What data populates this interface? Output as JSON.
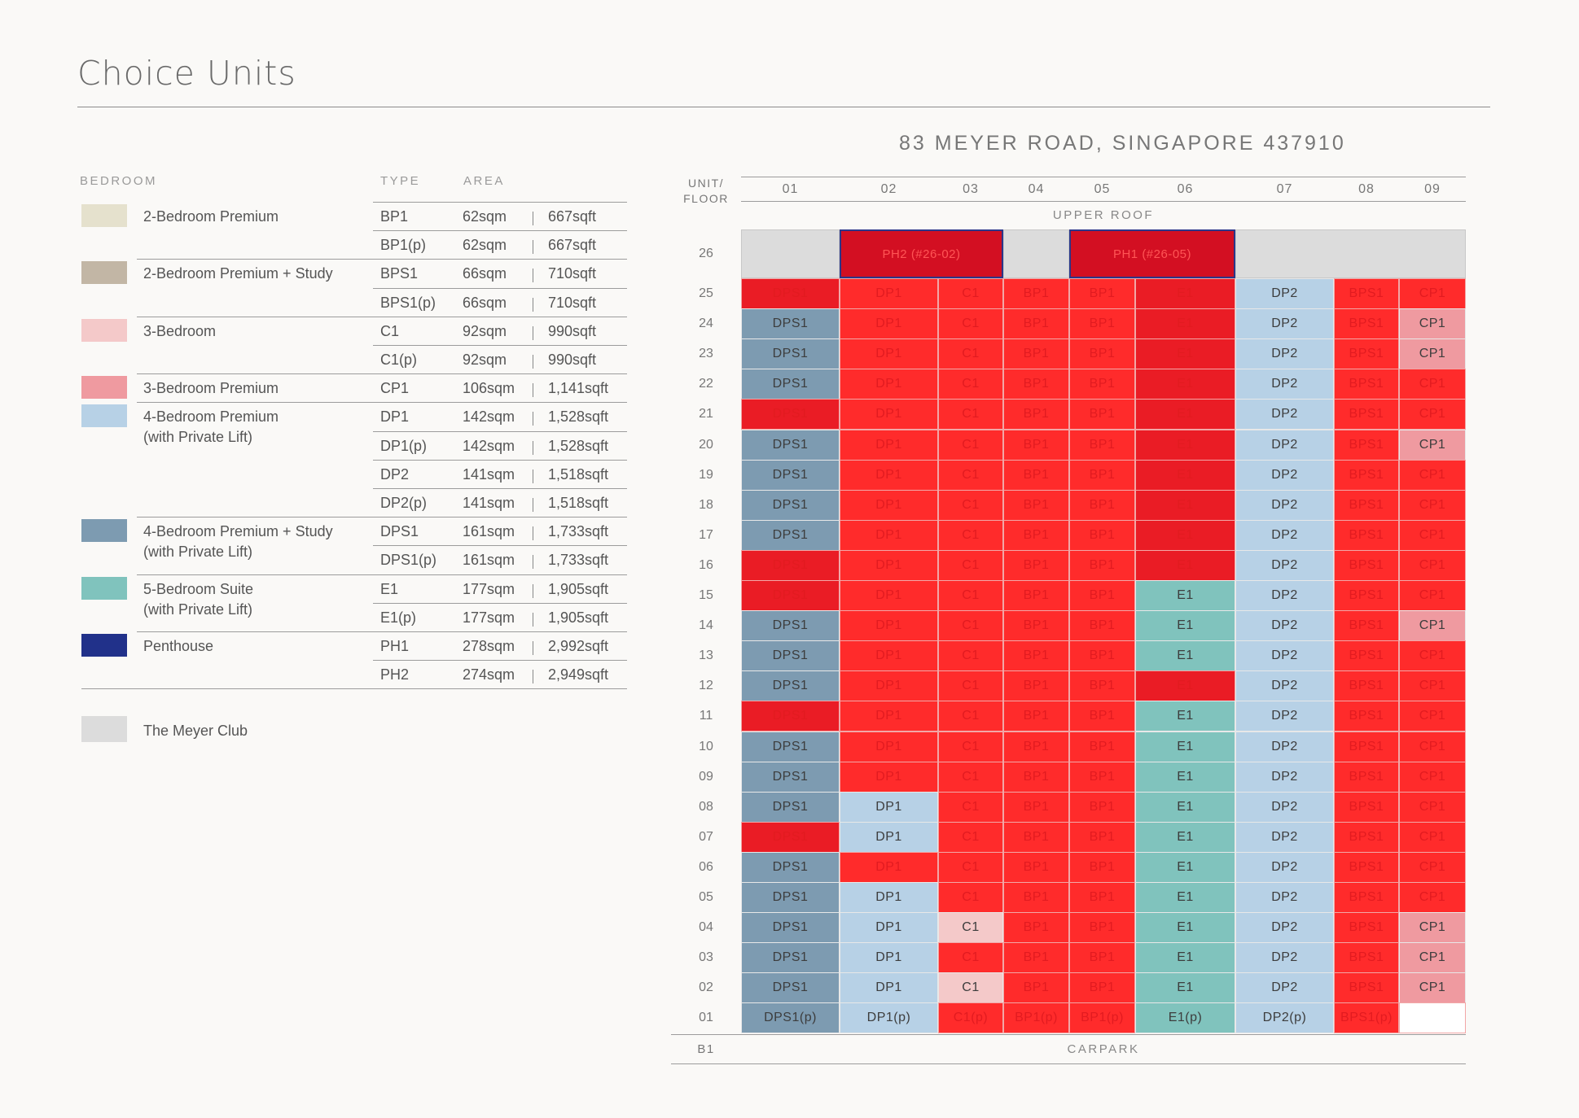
{
  "page": {
    "title": "Choice Units",
    "address": "83 MEYER ROAD, SINGAPORE 437910"
  },
  "legend": {
    "headers": {
      "bedroom": "BEDROOM",
      "type": "TYPE",
      "area": "AREA"
    },
    "groups": [
      {
        "label": "2-Bedroom Premium",
        "color": "#e5e1cd",
        "rows": [
          {
            "type": "BP1",
            "sqm": "62sqm",
            "sqft": "667sqft"
          },
          {
            "type": "BP1(p)",
            "sqm": "62sqm",
            "sqft": "667sqft"
          }
        ]
      },
      {
        "label": "2-Bedroom Premium + Study",
        "color": "#c2b6a5",
        "rows": [
          {
            "type": "BPS1",
            "sqm": "66sqm",
            "sqft": "710sqft"
          },
          {
            "type": "BPS1(p)",
            "sqm": "66sqm",
            "sqft": "710sqft"
          }
        ]
      },
      {
        "label": "3-Bedroom",
        "color": "#f4c9c9",
        "rows": [
          {
            "type": "C1",
            "sqm": "92sqm",
            "sqft": "990sqft"
          },
          {
            "type": "C1(p)",
            "sqm": "92sqm",
            "sqft": "990sqft"
          }
        ]
      },
      {
        "label": "3-Bedroom Premium",
        "color": "#ef9aa0",
        "rows": [
          {
            "type": "CP1",
            "sqm": "106sqm",
            "sqft": "1,141sqft"
          }
        ]
      },
      {
        "label": "4-Bedroom Premium\n(with Private Lift)",
        "color": "#b7d1e6",
        "rows": [
          {
            "type": "DP1",
            "sqm": "142sqm",
            "sqft": "1,528sqft"
          },
          {
            "type": "DP1(p)",
            "sqm": "142sqm",
            "sqft": "1,528sqft"
          },
          {
            "type": "DP2",
            "sqm": "141sqm",
            "sqft": "1,518sqft"
          },
          {
            "type": "DP2(p)",
            "sqm": "141sqm",
            "sqft": "1,518sqft"
          }
        ]
      },
      {
        "label": "4-Bedroom Premium + Study\n(with Private Lift)",
        "color": "#7d9bb1",
        "rows": [
          {
            "type": "DPS1",
            "sqm": "161sqm",
            "sqft": "1,733sqft"
          },
          {
            "type": "DPS1(p)",
            "sqm": "161sqm",
            "sqft": "1,733sqft"
          }
        ]
      },
      {
        "label": "5-Bedroom Suite\n(with Private Lift)",
        "color": "#80c3bd",
        "rows": [
          {
            "type": "E1",
            "sqm": "177sqm",
            "sqft": "1,905sqft"
          },
          {
            "type": "E1(p)",
            "sqm": "177sqm",
            "sqft": "1,905sqft"
          }
        ]
      },
      {
        "label": "Penthouse",
        "color": "#21318a",
        "rows": [
          {
            "type": "PH1",
            "sqm": "278sqm",
            "sqft": "2,992sqft"
          },
          {
            "type": "PH2",
            "sqm": "274sqm",
            "sqft": "2,949sqft"
          }
        ]
      }
    ],
    "club": {
      "label": "The Meyer Club",
      "color": "#dcdcdc"
    }
  },
  "grid": {
    "header": "UNIT/\nFLOOR",
    "columns": [
      "01",
      "02",
      "03",
      "04",
      "05",
      "06",
      "07",
      "08",
      "09"
    ],
    "upper_roof": "UPPER ROOF",
    "b1_label": "B1",
    "carpark": "CARPARK",
    "floor26": {
      "label": "26",
      "units": [
        {
          "text": "",
          "span": [
            0,
            1
          ],
          "color": "#dcdcdc"
        },
        {
          "text": "PH2 (#26-02)",
          "span": [
            1,
            3
          ],
          "color": "#d30f22",
          "ph": true
        },
        {
          "text": "",
          "span": [
            3,
            4
          ],
          "color": "#dcdcdc"
        },
        {
          "text": "PH1 (#26-05)",
          "span": [
            4,
            6
          ],
          "color": "#d30f22",
          "ph": true
        },
        {
          "text": "",
          "span": [
            6,
            9
          ],
          "color": "#dcdcdc"
        }
      ]
    },
    "status_colors": {
      "sold": "#ff2b2b",
      "sold_alt": "#ea1c25",
      "DPS1": "#7d9bb1",
      "DP1": "#b7d1e6",
      "DP2": "#b7d1e6",
      "C1": "#f4c9c9",
      "CP1": "#ef9aa0",
      "E1": "#80c3bd",
      "empty": "#ffffff"
    },
    "floors": [
      {
        "f": "25",
        "c": [
          [
            "DPS1",
            0
          ],
          [
            "DP1",
            0
          ],
          [
            "C1",
            0
          ],
          [
            "BP1",
            0
          ],
          [
            "BP1",
            0
          ],
          [
            "E1",
            0
          ],
          [
            "DP2",
            1
          ],
          [
            "BPS1",
            0
          ],
          [
            "CP1",
            0
          ]
        ]
      },
      {
        "f": "24",
        "c": [
          [
            "DPS1",
            1
          ],
          [
            "DP1",
            0
          ],
          [
            "C1",
            0
          ],
          [
            "BP1",
            0
          ],
          [
            "BP1",
            0
          ],
          [
            "E1",
            0
          ],
          [
            "DP2",
            1
          ],
          [
            "BPS1",
            0
          ],
          [
            "CP1",
            1
          ]
        ]
      },
      {
        "f": "23",
        "c": [
          [
            "DPS1",
            1
          ],
          [
            "DP1",
            0
          ],
          [
            "C1",
            0
          ],
          [
            "BP1",
            0
          ],
          [
            "BP1",
            0
          ],
          [
            "E1",
            0
          ],
          [
            "DP2",
            1
          ],
          [
            "BPS1",
            0
          ],
          [
            "CP1",
            1
          ]
        ]
      },
      {
        "f": "22",
        "c": [
          [
            "DPS1",
            1
          ],
          [
            "DP1",
            0
          ],
          [
            "C1",
            0
          ],
          [
            "BP1",
            0
          ],
          [
            "BP1",
            0
          ],
          [
            "E1",
            0
          ],
          [
            "DP2",
            1
          ],
          [
            "BPS1",
            0
          ],
          [
            "CP1",
            0
          ]
        ]
      },
      {
        "f": "21",
        "c": [
          [
            "DPS1",
            0
          ],
          [
            "DP1",
            0
          ],
          [
            "C1",
            0
          ],
          [
            "BP1",
            0
          ],
          [
            "BP1",
            0
          ],
          [
            "E1",
            0
          ],
          [
            "DP2",
            1
          ],
          [
            "BPS1",
            0
          ],
          [
            "CP1",
            0
          ]
        ]
      },
      {
        "f": "20",
        "c": [
          [
            "DPS1",
            1
          ],
          [
            "DP1",
            0
          ],
          [
            "C1",
            0
          ],
          [
            "BP1",
            0
          ],
          [
            "BP1",
            0
          ],
          [
            "E1",
            0
          ],
          [
            "DP2",
            1
          ],
          [
            "BPS1",
            0
          ],
          [
            "CP1",
            1
          ]
        ]
      },
      {
        "f": "19",
        "c": [
          [
            "DPS1",
            1
          ],
          [
            "DP1",
            0
          ],
          [
            "C1",
            0
          ],
          [
            "BP1",
            0
          ],
          [
            "BP1",
            0
          ],
          [
            "E1",
            0
          ],
          [
            "DP2",
            1
          ],
          [
            "BPS1",
            0
          ],
          [
            "CP1",
            0
          ]
        ]
      },
      {
        "f": "18",
        "c": [
          [
            "DPS1",
            1
          ],
          [
            "DP1",
            0
          ],
          [
            "C1",
            0
          ],
          [
            "BP1",
            0
          ],
          [
            "BP1",
            0
          ],
          [
            "E1",
            0
          ],
          [
            "DP2",
            1
          ],
          [
            "BPS1",
            0
          ],
          [
            "CP1",
            0
          ]
        ]
      },
      {
        "f": "17",
        "c": [
          [
            "DPS1",
            1
          ],
          [
            "DP1",
            0
          ],
          [
            "C1",
            0
          ],
          [
            "BP1",
            0
          ],
          [
            "BP1",
            0
          ],
          [
            "E1",
            0
          ],
          [
            "DP2",
            1
          ],
          [
            "BPS1",
            0
          ],
          [
            "CP1",
            0
          ]
        ]
      },
      {
        "f": "16",
        "c": [
          [
            "DPS1",
            0
          ],
          [
            "DP1",
            0
          ],
          [
            "C1",
            0
          ],
          [
            "BP1",
            0
          ],
          [
            "BP1",
            0
          ],
          [
            "E1",
            0
          ],
          [
            "DP2",
            1
          ],
          [
            "BPS1",
            0
          ],
          [
            "CP1",
            0
          ]
        ]
      },
      {
        "f": "15",
        "c": [
          [
            "DPS1",
            0
          ],
          [
            "DP1",
            0
          ],
          [
            "C1",
            0
          ],
          [
            "BP1",
            0
          ],
          [
            "BP1",
            0
          ],
          [
            "E1",
            1
          ],
          [
            "DP2",
            1
          ],
          [
            "BPS1",
            0
          ],
          [
            "CP1",
            0
          ]
        ]
      },
      {
        "f": "14",
        "c": [
          [
            "DPS1",
            1
          ],
          [
            "DP1",
            0
          ],
          [
            "C1",
            0
          ],
          [
            "BP1",
            0
          ],
          [
            "BP1",
            0
          ],
          [
            "E1",
            1
          ],
          [
            "DP2",
            1
          ],
          [
            "BPS1",
            0
          ],
          [
            "CP1",
            1
          ]
        ]
      },
      {
        "f": "13",
        "c": [
          [
            "DPS1",
            1
          ],
          [
            "DP1",
            0
          ],
          [
            "C1",
            0
          ],
          [
            "BP1",
            0
          ],
          [
            "BP1",
            0
          ],
          [
            "E1",
            1
          ],
          [
            "DP2",
            1
          ],
          [
            "BPS1",
            0
          ],
          [
            "CP1",
            0
          ]
        ]
      },
      {
        "f": "12",
        "c": [
          [
            "DPS1",
            1
          ],
          [
            "DP1",
            0
          ],
          [
            "C1",
            0
          ],
          [
            "BP1",
            0
          ],
          [
            "BP1",
            0
          ],
          [
            "E1",
            0
          ],
          [
            "DP2",
            1
          ],
          [
            "BPS1",
            0
          ],
          [
            "CP1",
            0
          ]
        ]
      },
      {
        "f": "11",
        "c": [
          [
            "DPS1",
            0
          ],
          [
            "DP1",
            0
          ],
          [
            "C1",
            0
          ],
          [
            "BP1",
            0
          ],
          [
            "BP1",
            0
          ],
          [
            "E1",
            1
          ],
          [
            "DP2",
            1
          ],
          [
            "BPS1",
            0
          ],
          [
            "CP1",
            0
          ]
        ]
      },
      {
        "f": "10",
        "c": [
          [
            "DPS1",
            1
          ],
          [
            "DP1",
            0
          ],
          [
            "C1",
            0
          ],
          [
            "BP1",
            0
          ],
          [
            "BP1",
            0
          ],
          [
            "E1",
            1
          ],
          [
            "DP2",
            1
          ],
          [
            "BPS1",
            0
          ],
          [
            "CP1",
            0
          ]
        ]
      },
      {
        "f": "09",
        "c": [
          [
            "DPS1",
            1
          ],
          [
            "DP1",
            0
          ],
          [
            "C1",
            0
          ],
          [
            "BP1",
            0
          ],
          [
            "BP1",
            0
          ],
          [
            "E1",
            1
          ],
          [
            "DP2",
            1
          ],
          [
            "BPS1",
            0
          ],
          [
            "CP1",
            0
          ]
        ]
      },
      {
        "f": "08",
        "c": [
          [
            "DPS1",
            1
          ],
          [
            "DP1",
            1
          ],
          [
            "C1",
            0
          ],
          [
            "BP1",
            0
          ],
          [
            "BP1",
            0
          ],
          [
            "E1",
            1
          ],
          [
            "DP2",
            1
          ],
          [
            "BPS1",
            0
          ],
          [
            "CP1",
            0
          ]
        ]
      },
      {
        "f": "07",
        "c": [
          [
            "DPS1",
            0
          ],
          [
            "DP1",
            1
          ],
          [
            "C1",
            0
          ],
          [
            "BP1",
            0
          ],
          [
            "BP1",
            0
          ],
          [
            "E1",
            1
          ],
          [
            "DP2",
            1
          ],
          [
            "BPS1",
            0
          ],
          [
            "CP1",
            0
          ]
        ]
      },
      {
        "f": "06",
        "c": [
          [
            "DPS1",
            1
          ],
          [
            "DP1",
            0
          ],
          [
            "C1",
            0
          ],
          [
            "BP1",
            0
          ],
          [
            "BP1",
            0
          ],
          [
            "E1",
            1
          ],
          [
            "DP2",
            1
          ],
          [
            "BPS1",
            0
          ],
          [
            "CP1",
            0
          ]
        ]
      },
      {
        "f": "05",
        "c": [
          [
            "DPS1",
            1
          ],
          [
            "DP1",
            1
          ],
          [
            "C1",
            0
          ],
          [
            "BP1",
            0
          ],
          [
            "BP1",
            0
          ],
          [
            "E1",
            1
          ],
          [
            "DP2",
            1
          ],
          [
            "BPS1",
            0
          ],
          [
            "CP1",
            0
          ]
        ]
      },
      {
        "f": "04",
        "c": [
          [
            "DPS1",
            1
          ],
          [
            "DP1",
            1
          ],
          [
            "C1",
            1
          ],
          [
            "BP1",
            0
          ],
          [
            "BP1",
            0
          ],
          [
            "E1",
            1
          ],
          [
            "DP2",
            1
          ],
          [
            "BPS1",
            0
          ],
          [
            "CP1",
            1
          ]
        ]
      },
      {
        "f": "03",
        "c": [
          [
            "DPS1",
            1
          ],
          [
            "DP1",
            1
          ],
          [
            "C1",
            0
          ],
          [
            "BP1",
            0
          ],
          [
            "BP1",
            0
          ],
          [
            "E1",
            1
          ],
          [
            "DP2",
            1
          ],
          [
            "BPS1",
            0
          ],
          [
            "CP1",
            1
          ]
        ]
      },
      {
        "f": "02",
        "c": [
          [
            "DPS1",
            1
          ],
          [
            "DP1",
            1
          ],
          [
            "C1",
            1
          ],
          [
            "BP1",
            0
          ],
          [
            "BP1",
            0
          ],
          [
            "E1",
            1
          ],
          [
            "DP2",
            1
          ],
          [
            "BPS1",
            0
          ],
          [
            "CP1",
            1
          ]
        ]
      },
      {
        "f": "01",
        "c": [
          [
            "DPS1(p)",
            1
          ],
          [
            "DP1(p)",
            1
          ],
          [
            "C1(p)",
            0
          ],
          [
            "BP1(p)",
            0
          ],
          [
            "BP1(p)",
            0
          ],
          [
            "E1(p)",
            1
          ],
          [
            "DP2(p)",
            1
          ],
          [
            "BPS1(p)",
            0
          ],
          [
            "",
            2
          ]
        ]
      }
    ]
  }
}
